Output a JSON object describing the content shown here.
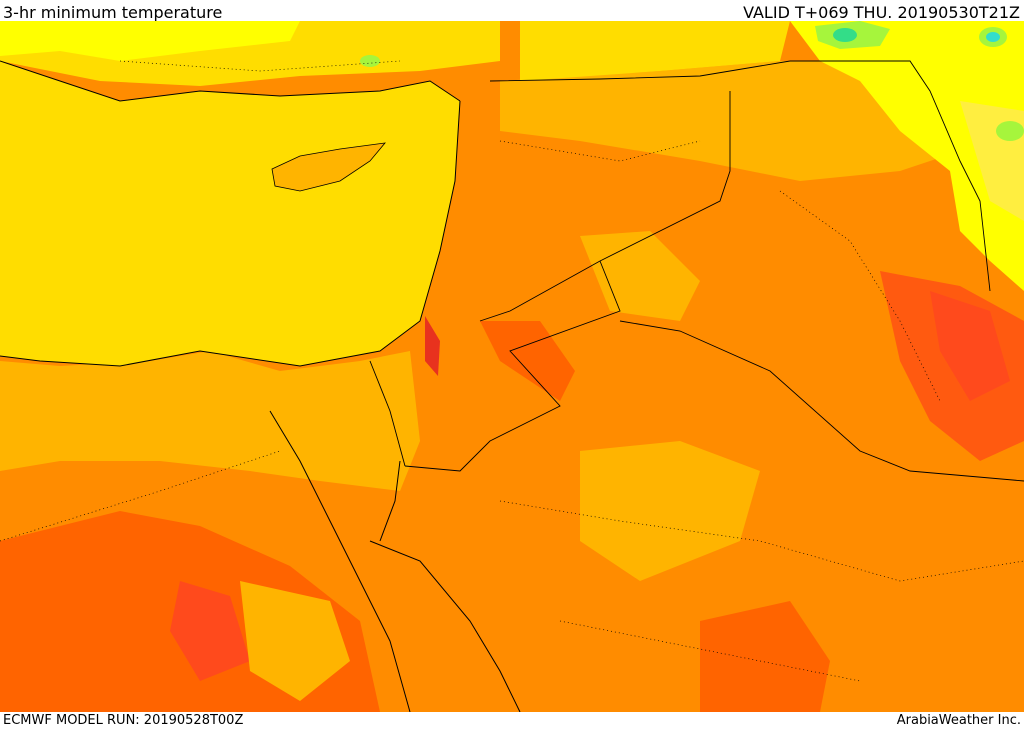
{
  "header": {
    "title": "3-hr minimum temperature",
    "valid": "VALID T+069 THU. 20190530T21Z"
  },
  "footer": {
    "model_run": "ECMWF MODEL RUN: 20190528T00Z",
    "credit": "ArabiaWeather Inc."
  },
  "colors": {
    "yellow": "#ffff00",
    "gold": "#ffdd00",
    "light_orange": "#ffb400",
    "orange": "#ff8c00",
    "dark_orange": "#ff6400",
    "red_orange": "#ff4a1c",
    "red": "#e8321e",
    "light_green": "#a6f53c",
    "green": "#33dd88",
    "cyan": "#33ddcc"
  }
}
